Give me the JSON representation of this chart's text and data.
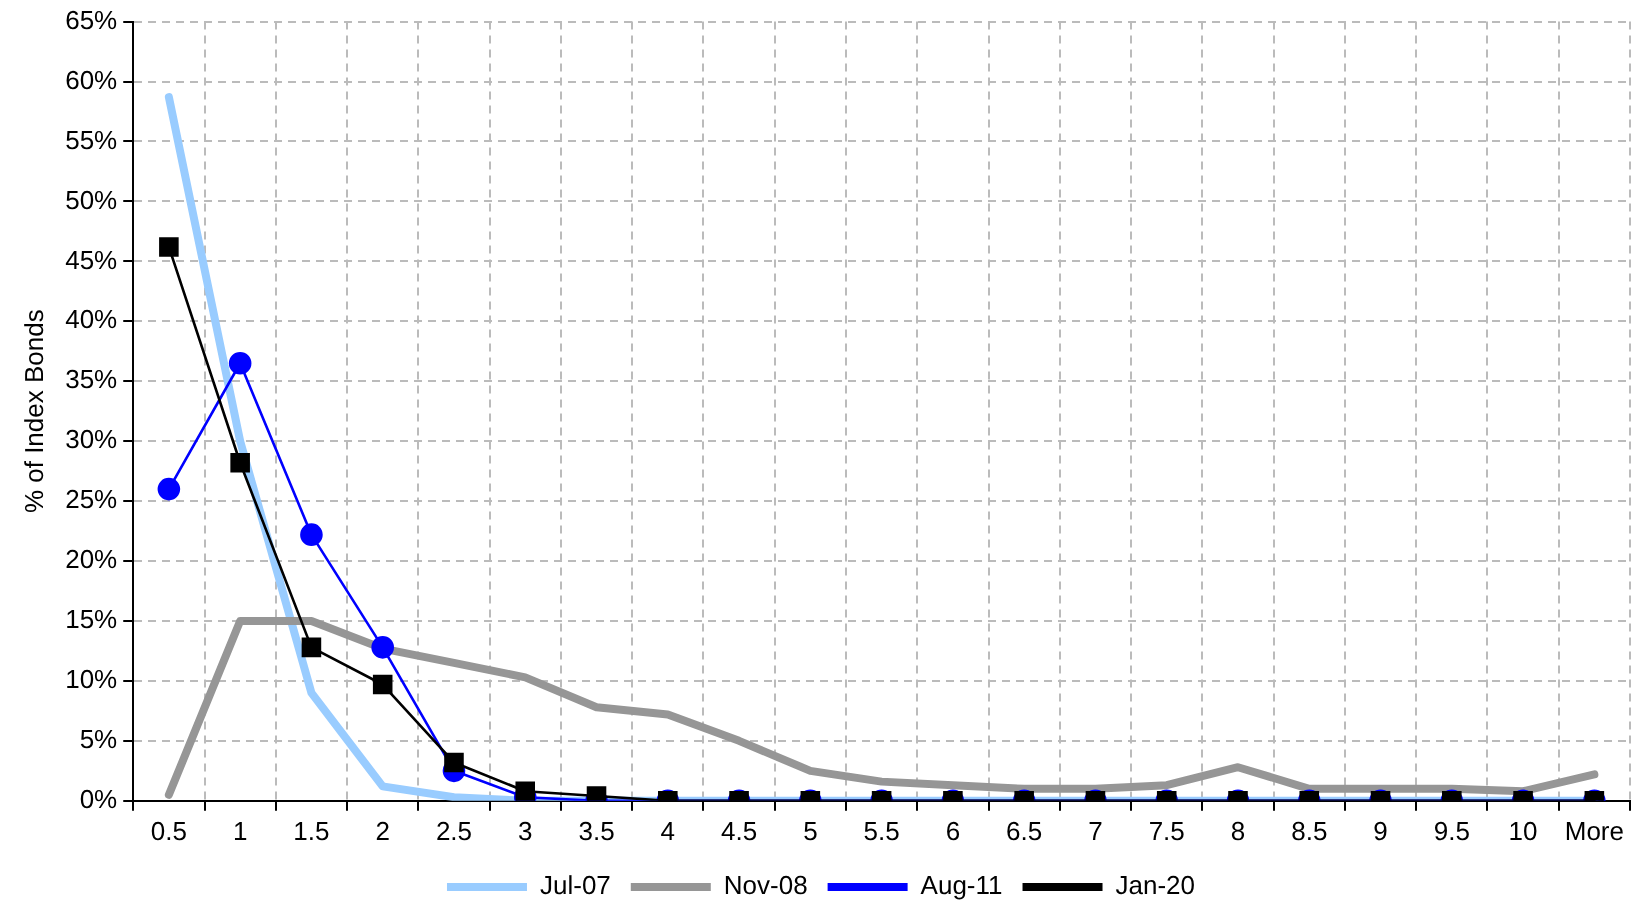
{
  "chart_data": {
    "type": "line",
    "ylabel": "% of Index Bonds",
    "categories": [
      "0.5",
      "1",
      "1.5",
      "2",
      "2.5",
      "3",
      "3.5",
      "4",
      "4.5",
      "5",
      "5.5",
      "6",
      "6.5",
      "7",
      "7.5",
      "8",
      "8.5",
      "9",
      "9.5",
      "10",
      "More"
    ],
    "series": [
      {
        "name": "Jul-07",
        "color": "#99ccff",
        "marker": "none",
        "values": [
          58.7,
          30,
          9,
          1.2,
          0.3,
          0,
          0,
          0,
          0,
          0,
          0,
          0,
          0,
          0,
          0,
          0,
          0,
          0,
          0,
          0,
          0
        ]
      },
      {
        "name": "Nov-08",
        "color": "#969696",
        "marker": "none",
        "values": [
          0.5,
          15,
          15,
          12.7,
          11.5,
          10.3,
          7.8,
          7.2,
          5,
          2.5,
          1.6,
          1.3,
          1,
          1,
          1.3,
          2.8,
          1,
          1,
          1,
          0.8,
          2.2
        ]
      },
      {
        "name": "Aug-11",
        "color": "#0000ff",
        "marker": "circle",
        "values": [
          26,
          36.5,
          22.2,
          12.8,
          2.5,
          0.3,
          0,
          0,
          0,
          0,
          0,
          0,
          0,
          0,
          0,
          0,
          0,
          0,
          0,
          0,
          0
        ]
      },
      {
        "name": "Jan-20",
        "color": "#000000",
        "marker": "square",
        "values": [
          46.2,
          28.2,
          12.8,
          9.7,
          3.2,
          0.8,
          0.4,
          0,
          0,
          0,
          0,
          0,
          0,
          0,
          0,
          0,
          0,
          0,
          0,
          0,
          0
        ]
      }
    ],
    "ylim": [
      0,
      65
    ],
    "yticks": [
      {
        "value": 0,
        "label": "0%"
      },
      {
        "value": 5,
        "label": "5%"
      },
      {
        "value": 10,
        "label": "10%"
      },
      {
        "value": 15,
        "label": "15%"
      },
      {
        "value": 20,
        "label": "20%"
      },
      {
        "value": 25,
        "label": "25%"
      },
      {
        "value": 30,
        "label": "30%"
      },
      {
        "value": 35,
        "label": "35%"
      },
      {
        "value": 40,
        "label": "40%"
      },
      {
        "value": 45,
        "label": "45%"
      },
      {
        "value": 50,
        "label": "50%"
      },
      {
        "value": 55,
        "label": "55%"
      },
      {
        "value": 60,
        "label": "60%"
      },
      {
        "value": 65,
        "label": "65%"
      }
    ],
    "grid": true,
    "legend": "bottom",
    "line_style": "solid"
  }
}
